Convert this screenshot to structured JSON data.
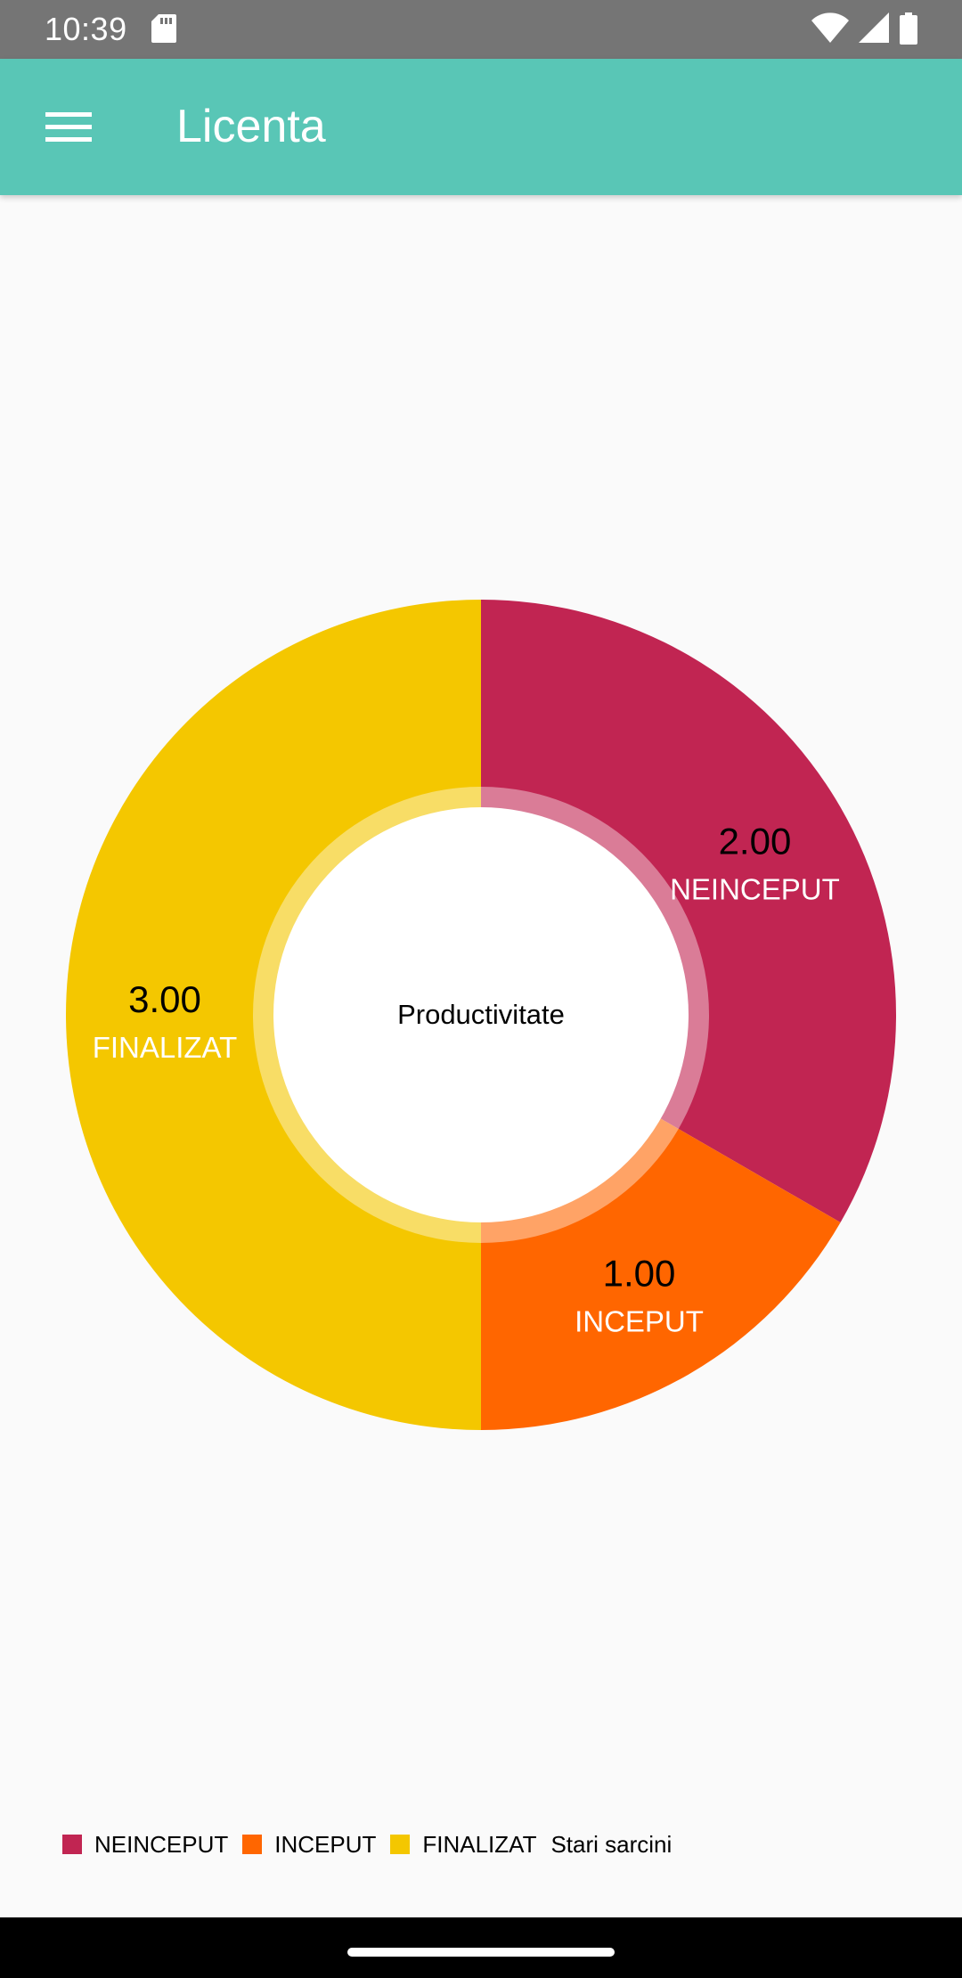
{
  "status_bar": {
    "time": "10:39",
    "icons": [
      "sd-card-icon",
      "wifi-icon",
      "signal-icon",
      "battery-icon"
    ]
  },
  "app_bar": {
    "title": "Licenta",
    "menu_icon": "menu-icon",
    "color": "#59c6b6"
  },
  "chart_data": {
    "type": "pie",
    "style": "donut",
    "center_text": "Productivitate",
    "categories": [
      "NEINCEPUT",
      "INCEPUT",
      "FINALIZAT"
    ],
    "values": [
      2,
      1,
      3
    ],
    "value_labels": [
      "2.00",
      "1.00",
      "3.00"
    ],
    "colors": [
      "#c12552",
      "#ff6600",
      "#f4c700"
    ],
    "series_description": "Stari sarcini",
    "legend_position": "bottom-left"
  },
  "legend": {
    "items": [
      {
        "label": "NEINCEPUT",
        "color": "#c12552"
      },
      {
        "label": "INCEPUT",
        "color": "#ff6600"
      },
      {
        "label": "FINALIZAT",
        "color": "#f4c700"
      }
    ],
    "description": "Stari sarcini"
  }
}
